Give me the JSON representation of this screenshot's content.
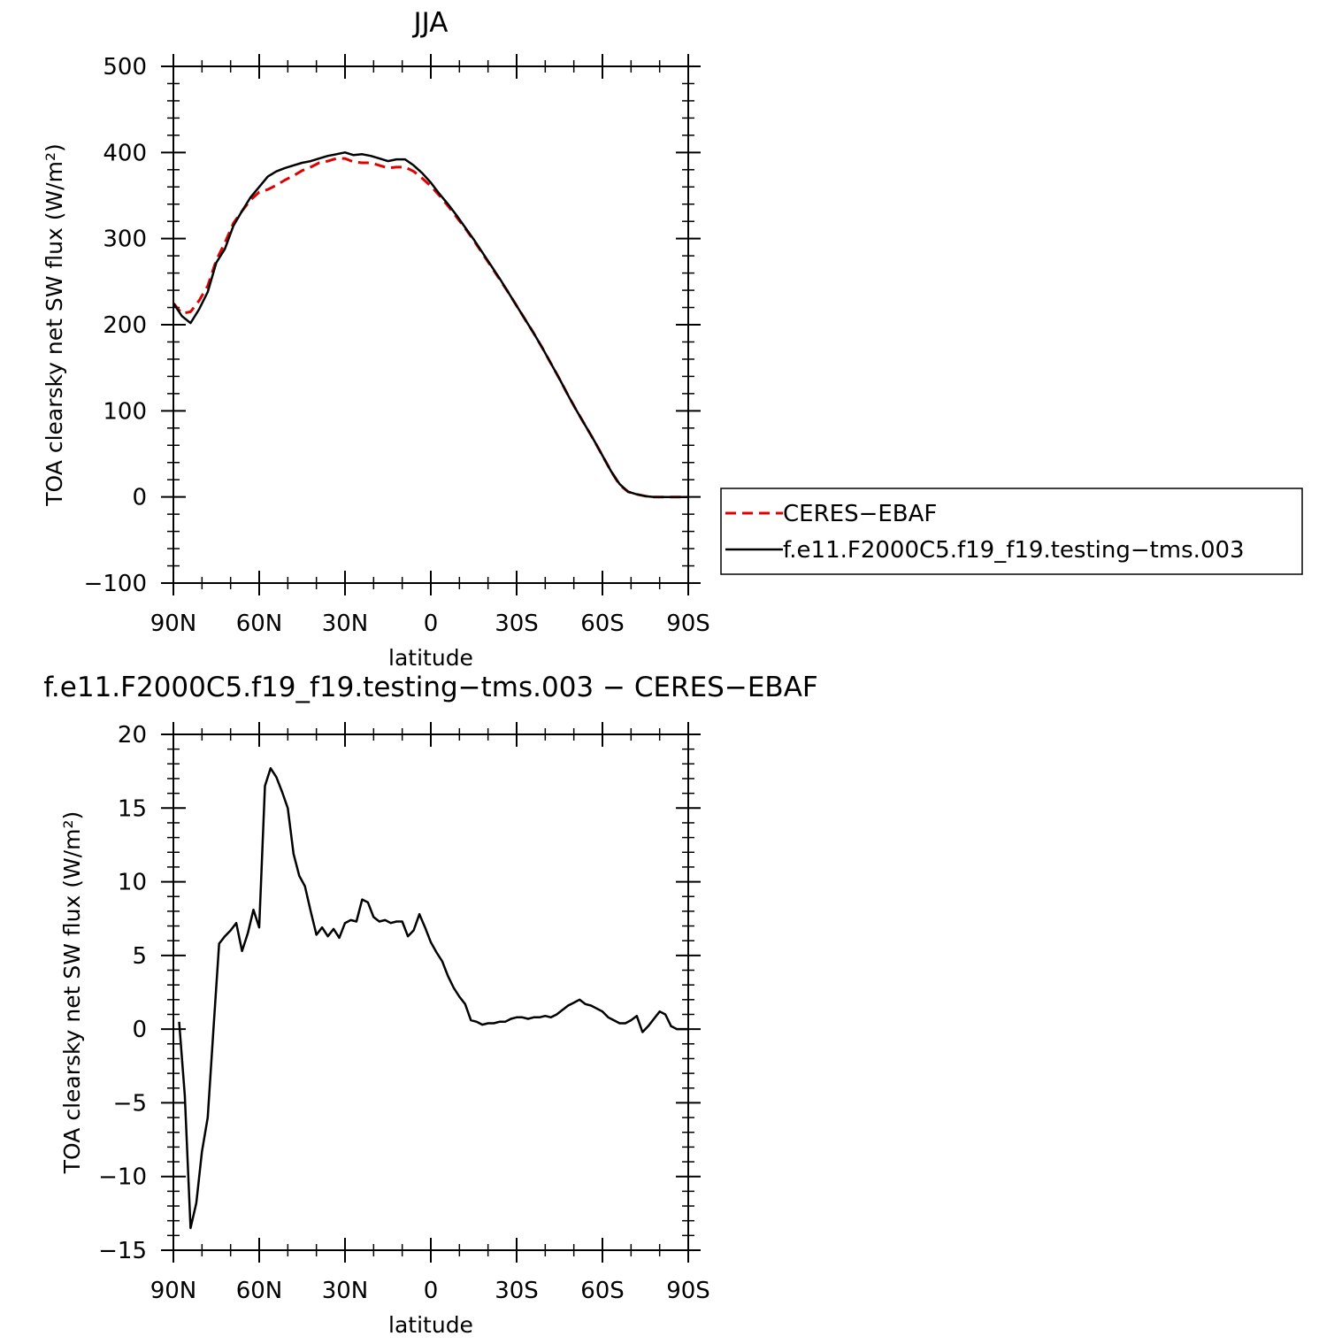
{
  "chart_data": [
    {
      "type": "line",
      "title": "JJA",
      "xlabel": "latitude",
      "ylabel": "TOA clearsky net SW flux (W/m²)",
      "xlim": [
        90,
        -90
      ],
      "ylim": [
        -100,
        500
      ],
      "yticks": [
        -100,
        0,
        100,
        200,
        300,
        400,
        500
      ],
      "xticks": [
        {
          "value": 90,
          "label": "90N"
        },
        {
          "value": 60,
          "label": "60N"
        },
        {
          "value": 30,
          "label": "30N"
        },
        {
          "value": 0,
          "label": "0"
        },
        {
          "value": -30,
          "label": "30S"
        },
        {
          "value": -60,
          "label": "60S"
        },
        {
          "value": -90,
          "label": "90S"
        }
      ],
      "legend": "right",
      "series": [
        {
          "name": "CERES−EBAF",
          "color": "#e00000",
          "dash": true,
          "points": [
            [
              90,
              225
            ],
            [
              87,
              213
            ],
            [
              84,
              215
            ],
            [
              81,
              228
            ],
            [
              78,
              245
            ],
            [
              75,
              275
            ],
            [
              72,
              295
            ],
            [
              69,
              318
            ],
            [
              66,
              332
            ],
            [
              63,
              345
            ],
            [
              60,
              354
            ],
            [
              57,
              357
            ],
            [
              54,
              362
            ],
            [
              51,
              368
            ],
            [
              48,
              373
            ],
            [
              45,
              379
            ],
            [
              42,
              383
            ],
            [
              39,
              388
            ],
            [
              36,
              390
            ],
            [
              33,
              393
            ],
            [
              30,
              393
            ],
            [
              27,
              389
            ],
            [
              24,
              388
            ],
            [
              21,
              388
            ],
            [
              18,
              385
            ],
            [
              15,
              382
            ],
            [
              12,
              383
            ],
            [
              9,
              383
            ],
            [
              6,
              378
            ],
            [
              3,
              370
            ],
            [
              0,
              361
            ],
            [
              -3,
              350
            ],
            [
              -6,
              338
            ],
            [
              -9,
              325
            ],
            [
              -12,
              312
            ],
            [
              -15,
              298
            ],
            [
              -18,
              283
            ],
            [
              -21,
              268
            ],
            [
              -24,
              253
            ],
            [
              -27,
              238
            ],
            [
              -30,
              222
            ],
            [
              -33,
              206
            ],
            [
              -36,
              190
            ],
            [
              -39,
              173
            ],
            [
              -42,
              155
            ],
            [
              -45,
              137
            ],
            [
              -48,
              118
            ],
            [
              -51,
              100
            ],
            [
              -54,
              83
            ],
            [
              -57,
              66
            ],
            [
              -60,
              48
            ],
            [
              -63,
              30
            ],
            [
              -66,
              14
            ],
            [
              -69,
              6
            ],
            [
              -72,
              3
            ],
            [
              -75,
              1
            ],
            [
              -78,
              0
            ],
            [
              -81,
              0
            ],
            [
              -84,
              0
            ],
            [
              -87,
              0
            ],
            [
              -90,
              0
            ]
          ]
        },
        {
          "name": "f.e11.F2000C5.f19_f19.testing−tms.003",
          "color": "#000000",
          "dash": false,
          "points": [
            [
              90,
              225
            ],
            [
              87,
              210
            ],
            [
              84,
              202
            ],
            [
              81,
              218
            ],
            [
              78,
              238
            ],
            [
              75,
              272
            ],
            [
              72,
              288
            ],
            [
              69,
              315
            ],
            [
              66,
              332
            ],
            [
              63,
              348
            ],
            [
              60,
              360
            ],
            [
              57,
              372
            ],
            [
              54,
              378
            ],
            [
              51,
              382
            ],
            [
              48,
              385
            ],
            [
              45,
              388
            ],
            [
              42,
              390
            ],
            [
              39,
              393
            ],
            [
              36,
              396
            ],
            [
              33,
              398
            ],
            [
              30,
              400
            ],
            [
              27,
              397
            ],
            [
              24,
              398
            ],
            [
              21,
              396
            ],
            [
              18,
              393
            ],
            [
              15,
              390
            ],
            [
              12,
              392
            ],
            [
              9,
              392
            ],
            [
              6,
              385
            ],
            [
              3,
              376
            ],
            [
              0,
              365
            ],
            [
              -3,
              352
            ],
            [
              -6,
              340
            ],
            [
              -9,
              327
            ],
            [
              -12,
              313
            ],
            [
              -15,
              299
            ],
            [
              -18,
              284
            ],
            [
              -21,
              269
            ],
            [
              -24,
              254
            ],
            [
              -27,
              238
            ],
            [
              -30,
              222
            ],
            [
              -33,
              206
            ],
            [
              -36,
              190
            ],
            [
              -39,
              173
            ],
            [
              -42,
              155
            ],
            [
              -45,
              137
            ],
            [
              -48,
              118
            ],
            [
              -51,
              100
            ],
            [
              -54,
              83
            ],
            [
              -57,
              66
            ],
            [
              -60,
              48
            ],
            [
              -63,
              30
            ],
            [
              -66,
              15
            ],
            [
              -69,
              6
            ],
            [
              -72,
              3
            ],
            [
              -75,
              1
            ],
            [
              -78,
              0
            ],
            [
              -81,
              0
            ],
            [
              -84,
              0
            ],
            [
              -87,
              0
            ],
            [
              -90,
              0
            ]
          ]
        }
      ]
    },
    {
      "type": "line",
      "title": "f.e11.F2000C5.f19_f19.testing−tms.003 − CERES−EBAF",
      "xlabel": "latitude",
      "ylabel": "TOA clearsky net SW flux (W/m²)",
      "xlim": [
        90,
        -90
      ],
      "ylim": [
        -15,
        20
      ],
      "yticks": [
        -15,
        -10,
        -5,
        0,
        5,
        10,
        15,
        20
      ],
      "xticks": [
        {
          "value": 90,
          "label": "90N"
        },
        {
          "value": 60,
          "label": "60N"
        },
        {
          "value": 30,
          "label": "30N"
        },
        {
          "value": 0,
          "label": "0"
        },
        {
          "value": -30,
          "label": "30S"
        },
        {
          "value": -60,
          "label": "60S"
        },
        {
          "value": -90,
          "label": "90S"
        }
      ],
      "series": [
        {
          "color": "#000000",
          "dash": false,
          "points": [
            [
              88,
              0.5
            ],
            [
              86,
              -4.5
            ],
            [
              84,
              -13.5
            ],
            [
              82,
              -11.8
            ],
            [
              80,
              -8.3
            ],
            [
              78,
              -6
            ],
            [
              76,
              0
            ],
            [
              74,
              5.8
            ],
            [
              72,
              6.3
            ],
            [
              70,
              6.7
            ],
            [
              68,
              7.2
            ],
            [
              66,
              5.3
            ],
            [
              64,
              6.5
            ],
            [
              62,
              8.1
            ],
            [
              60,
              6.9
            ],
            [
              58,
              16.5
            ],
            [
              56,
              17.7
            ],
            [
              54,
              17.1
            ],
            [
              52,
              16.1
            ],
            [
              50,
              15
            ],
            [
              48,
              11.9
            ],
            [
              46,
              10.4
            ],
            [
              44,
              9.7
            ],
            [
              42,
              8
            ],
            [
              40,
              6.4
            ],
            [
              38,
              6.9
            ],
            [
              36,
              6.3
            ],
            [
              34,
              6.8
            ],
            [
              32,
              6.2
            ],
            [
              30,
              7.2
            ],
            [
              28,
              7.4
            ],
            [
              26,
              7.3
            ],
            [
              24,
              8.8
            ],
            [
              22,
              8.6
            ],
            [
              20,
              7.6
            ],
            [
              18,
              7.3
            ],
            [
              16,
              7.4
            ],
            [
              14,
              7.2
            ],
            [
              12,
              7.3
            ],
            [
              10,
              7.3
            ],
            [
              8,
              6.3
            ],
            [
              6,
              6.7
            ],
            [
              4,
              7.8
            ],
            [
              2,
              6.9
            ],
            [
              0,
              5.9
            ],
            [
              -2,
              5.2
            ],
            [
              -4,
              4.6
            ],
            [
              -6,
              3.6
            ],
            [
              -8,
              2.8
            ],
            [
              -10,
              2.2
            ],
            [
              -12,
              1.7
            ],
            [
              -14,
              0.6
            ],
            [
              -16,
              0.5
            ],
            [
              -18,
              0.3
            ],
            [
              -20,
              0.4
            ],
            [
              -22,
              0.4
            ],
            [
              -24,
              0.5
            ],
            [
              -26,
              0.5
            ],
            [
              -28,
              0.7
            ],
            [
              -30,
              0.8
            ],
            [
              -32,
              0.8
            ],
            [
              -34,
              0.7
            ],
            [
              -36,
              0.8
            ],
            [
              -38,
              0.8
            ],
            [
              -40,
              0.9
            ],
            [
              -42,
              0.8
            ],
            [
              -44,
              1.0
            ],
            [
              -46,
              1.3
            ],
            [
              -48,
              1.6
            ],
            [
              -50,
              1.8
            ],
            [
              -52,
              2.0
            ],
            [
              -54,
              1.7
            ],
            [
              -56,
              1.6
            ],
            [
              -58,
              1.4
            ],
            [
              -60,
              1.2
            ],
            [
              -62,
              0.8
            ],
            [
              -64,
              0.6
            ],
            [
              -66,
              0.4
            ],
            [
              -68,
              0.4
            ],
            [
              -70,
              0.6
            ],
            [
              -72,
              0.9
            ],
            [
              -74,
              -0.2
            ],
            [
              -76,
              0.2
            ],
            [
              -78,
              0.7
            ],
            [
              -80,
              1.2
            ],
            [
              -82,
              1.0
            ],
            [
              -84,
              0.2
            ],
            [
              -86,
              0
            ],
            [
              -88,
              0
            ],
            [
              -90,
              0
            ]
          ]
        }
      ]
    }
  ]
}
